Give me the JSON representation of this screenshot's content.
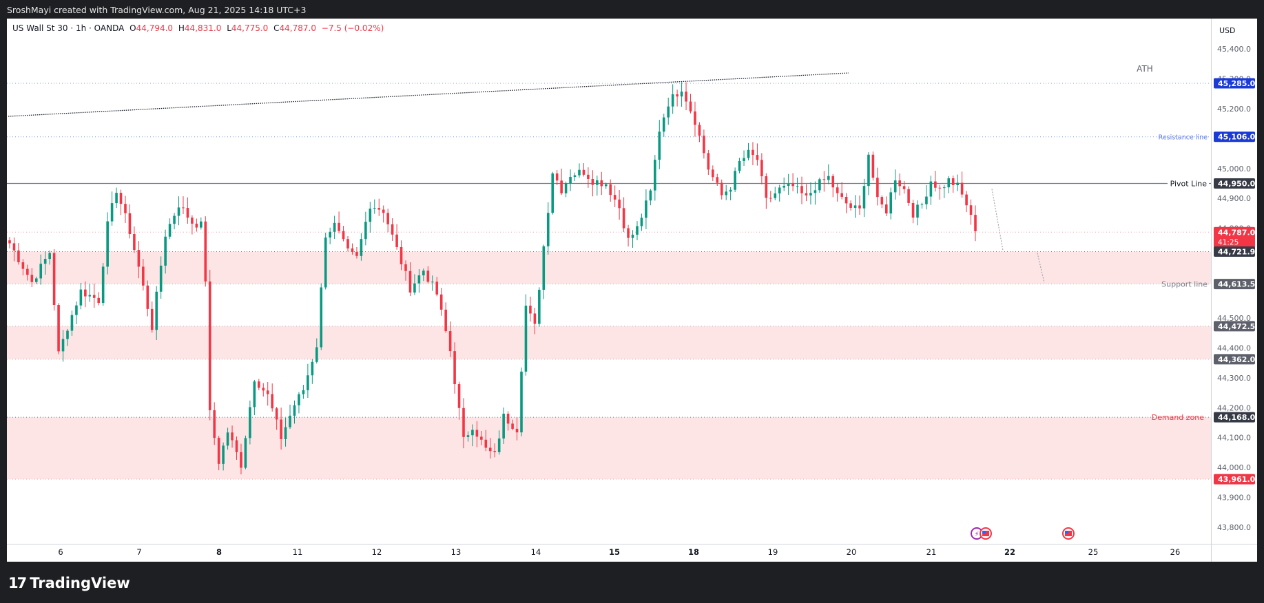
{
  "header": {
    "credit": "SroshMayi created with TradingView.com, Aug 21, 2025 14:18 UTC+3"
  },
  "legend": {
    "symbol": "US Wall St 30 · 1h · OANDA",
    "o_label": "O",
    "o_value": "44,794.0",
    "h_label": "H",
    "h_value": "44,831.0",
    "l_label": "L",
    "l_value": "44,775.0",
    "c_label": "C",
    "c_value": "44,787.0",
    "change": "−7.5 (−0.02%)"
  },
  "footer": {
    "brand": "TradingView",
    "brand_icon": "tradingview-logo-icon"
  },
  "colors": {
    "up": "#089981",
    "down": "#f23645",
    "zone": "#fde5e5",
    "blue": "#1a3bd6",
    "grey_label": "#5d606b"
  },
  "chart_data": {
    "type": "candlestick",
    "currency": "USD",
    "ylim": [
      43740,
      45480
    ],
    "y_ticks": [
      "45,400.0",
      "45,300.0",
      "45,200.0",
      "45,000.0",
      "44,900.0",
      "44,800.0",
      "44,500.0",
      "44,400.0",
      "44,300.0",
      "44,200.0",
      "44,100.0",
      "44,000.0",
      "43,900.0",
      "43,800.0"
    ],
    "x_ticks": [
      "6",
      "7",
      "8",
      "11",
      "12",
      "13",
      "14",
      "15",
      "18",
      "19",
      "20",
      "21",
      "22",
      "25",
      "26"
    ],
    "x_ticks_bold": [
      "8",
      "15",
      "18",
      "22"
    ],
    "levels": [
      {
        "price": 45285.0,
        "label": "45,285.0",
        "style": "blue",
        "text": "ATH"
      },
      {
        "price": 45106.0,
        "label": "45,106.0",
        "style": "blue",
        "text": "Resistance line"
      },
      {
        "price": 44950.0,
        "label": "44,950.0",
        "style": "dark",
        "text": "Pivot Line"
      },
      {
        "price": 44787.0,
        "label": "44,787.0",
        "style": "red",
        "text": "",
        "countdown": "41:25"
      },
      {
        "price": 44721.9,
        "label": "44,721.9",
        "style": "dark",
        "text": ""
      },
      {
        "price": 44613.5,
        "label": "44,613.5",
        "style": "grey",
        "text": "Support line"
      },
      {
        "price": 44472.5,
        "label": "44,472.5",
        "style": "grey",
        "text": ""
      },
      {
        "price": 44362.0,
        "label": "44,362.0",
        "style": "grey",
        "text": ""
      },
      {
        "price": 44168.0,
        "label": "44,168.0",
        "style": "dark",
        "text": "Demand zone"
      },
      {
        "price": 43961.0,
        "label": "43,961.0",
        "style": "red",
        "text": ""
      }
    ],
    "zones": [
      {
        "from": 44721.9,
        "to": 44613.5
      },
      {
        "from": 44472.5,
        "to": 44362.0
      },
      {
        "from": 44168.0,
        "to": 43961.0
      }
    ],
    "waypoints": [
      [
        0,
        44750
      ],
      [
        5,
        44620
      ],
      [
        9,
        44720
      ],
      [
        11,
        44380
      ],
      [
        13,
        44470
      ],
      [
        16,
        44590
      ],
      [
        20,
        44560
      ],
      [
        22,
        44810
      ],
      [
        24,
        44930
      ],
      [
        27,
        44790
      ],
      [
        29,
        44670
      ],
      [
        32,
        44470
      ],
      [
        35,
        44780
      ],
      [
        38,
        44880
      ],
      [
        41,
        44820
      ],
      [
        43,
        44810
      ],
      [
        44,
        44630
      ],
      [
        45,
        44180
      ],
      [
        47,
        44020
      ],
      [
        49,
        44120
      ],
      [
        52,
        44010
      ],
      [
        55,
        44300
      ],
      [
        58,
        44240
      ],
      [
        61,
        44100
      ],
      [
        64,
        44210
      ],
      [
        66,
        44260
      ],
      [
        69,
        44410
      ],
      [
        71,
        44780
      ],
      [
        73,
        44810
      ],
      [
        76,
        44720
      ],
      [
        78,
        44700
      ],
      [
        81,
        44880
      ],
      [
        84,
        44860
      ],
      [
        87,
        44730
      ],
      [
        90,
        44600
      ],
      [
        93,
        44660
      ],
      [
        96,
        44580
      ],
      [
        99,
        44390
      ],
      [
        102,
        44090
      ],
      [
        104,
        44140
      ],
      [
        107,
        44060
      ],
      [
        109,
        44040
      ],
      [
        111,
        44170
      ],
      [
        114,
        44130
      ],
      [
        116,
        44540
      ],
      [
        118,
        44470
      ],
      [
        120,
        44740
      ],
      [
        122,
        44990
      ],
      [
        124,
        44930
      ],
      [
        126,
        44980
      ],
      [
        129,
        44990
      ],
      [
        131,
        44960
      ],
      [
        134,
        44950
      ],
      [
        137,
        44870
      ],
      [
        139,
        44760
      ],
      [
        141,
        44800
      ],
      [
        144,
        44920
      ],
      [
        146,
        45130
      ],
      [
        148,
        45220
      ],
      [
        151,
        45270
      ],
      [
        154,
        45160
      ],
      [
        157,
        45000
      ],
      [
        160,
        44910
      ],
      [
        162,
        44940
      ],
      [
        164,
        45020
      ],
      [
        166,
        45050
      ],
      [
        168,
        45030
      ],
      [
        170,
        44890
      ],
      [
        173,
        44930
      ],
      [
        176,
        44940
      ],
      [
        179,
        44900
      ],
      [
        181,
        44940
      ],
      [
        184,
        44970
      ],
      [
        186,
        44910
      ],
      [
        189,
        44870
      ],
      [
        191,
        44860
      ],
      [
        193,
        45050
      ],
      [
        195,
        44890
      ],
      [
        197,
        44860
      ],
      [
        199,
        44970
      ],
      [
        201,
        44930
      ],
      [
        203,
        44850
      ],
      [
        205,
        44880
      ],
      [
        207,
        44960
      ],
      [
        209,
        44930
      ],
      [
        211,
        44960
      ],
      [
        213,
        44940
      ],
      [
        215,
        44880
      ],
      [
        217,
        44790
      ]
    ],
    "trend_line": {
      "from": [
        "Aug 5",
        45160
      ],
      "to": [
        "Aug 20",
        45330
      ]
    },
    "projection_arrows": [
      [
        44950,
        44721.9
      ],
      [
        44721.9,
        44613.5
      ]
    ],
    "events": [
      "lightning-icon",
      "us-flag-icon",
      "us-flag-icon"
    ]
  }
}
